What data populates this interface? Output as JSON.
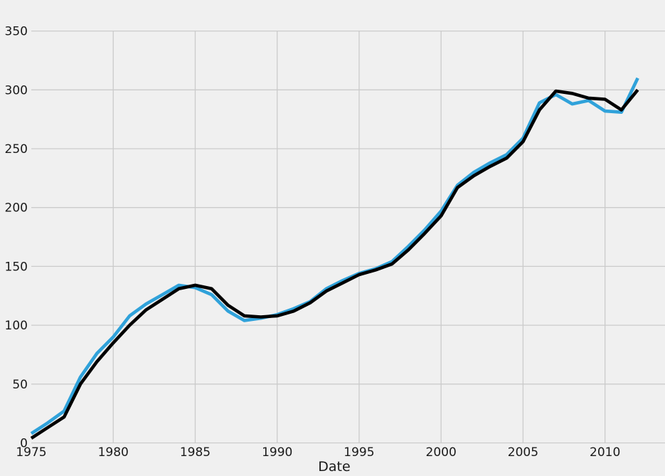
{
  "page": {
    "background_color": "#f0f0f0"
  },
  "chart_data": {
    "type": "line",
    "title": "",
    "xlabel": "Date",
    "ylabel": "",
    "grid": true,
    "legend": "none",
    "colors": {
      "background": "#f0f0f0",
      "gridline": "#cbcbcb",
      "tick_text": "#1a1a1a"
    },
    "x_axis": {
      "lim": [
        1975,
        2013.66
      ],
      "ticks": [
        1975,
        1980,
        1985,
        1990,
        1995,
        2000,
        2005,
        2010
      ],
      "gridline_ticks": [
        1980,
        1985,
        1990,
        1995,
        2000,
        2005,
        2010
      ]
    },
    "y_axis": {
      "lim": [
        0,
        350
      ],
      "ticks": [
        0,
        50,
        100,
        150,
        200,
        250,
        300,
        350
      ]
    },
    "x": [
      1975,
      1976,
      1977,
      1978,
      1979,
      1980,
      1981,
      1982,
      1983,
      1984,
      1985,
      1986,
      1987,
      1988,
      1989,
      1990,
      1991,
      1992,
      1993,
      1994,
      1995,
      1996,
      1997,
      1998,
      1999,
      2000,
      2001,
      2002,
      2003,
      2004,
      2005,
      2006,
      2007,
      2008,
      2009,
      2010,
      2011,
      2012
    ],
    "series": [
      {
        "name": "blue-line",
        "color": "#30a2da",
        "linewidth": 4.6,
        "values": [
          8,
          17,
          27,
          56,
          76,
          90,
          108,
          118,
          126,
          134,
          132,
          126,
          112,
          104,
          106,
          109,
          114,
          120,
          131,
          138,
          144,
          148,
          154,
          167,
          181,
          197,
          219,
          230,
          238,
          245,
          259,
          289,
          296,
          288,
          291,
          282,
          281,
          310
        ]
      },
      {
        "name": "black-line",
        "color": "#000000",
        "linewidth": 4.6,
        "values": [
          4,
          13,
          22,
          50,
          69,
          85,
          100,
          113,
          122,
          131,
          134,
          131,
          117,
          108,
          107,
          108,
          112,
          119,
          129,
          136,
          143,
          147,
          152,
          164,
          178,
          193,
          217,
          227,
          235,
          242,
          256,
          283,
          299,
          297,
          293,
          292,
          283,
          300
        ]
      }
    ]
  }
}
